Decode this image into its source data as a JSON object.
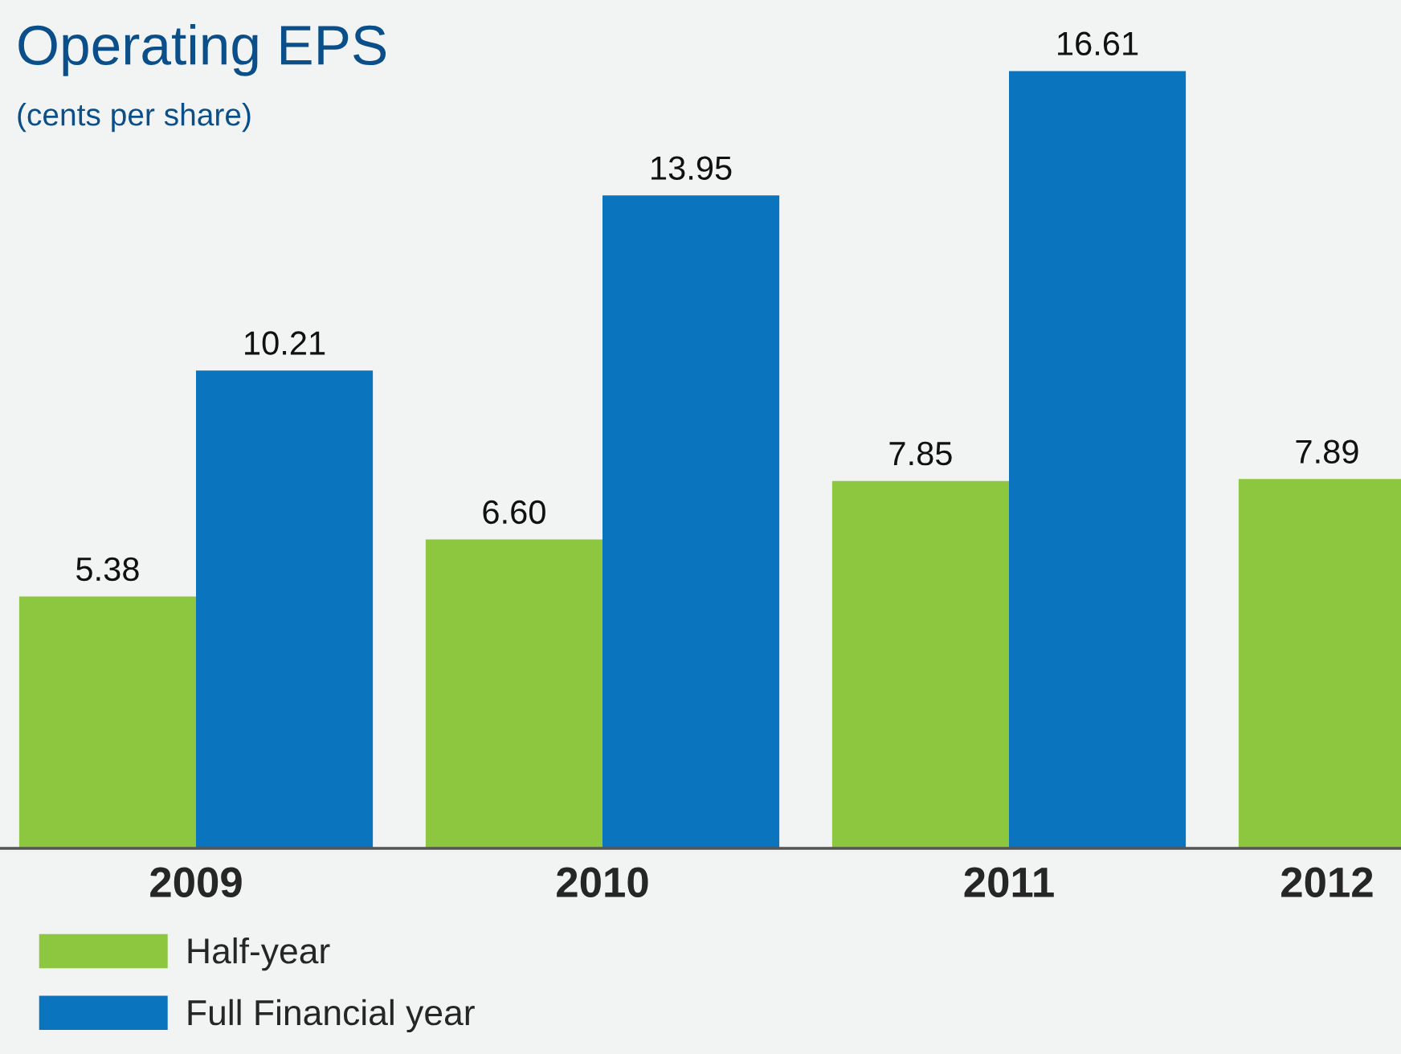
{
  "chart_data": {
    "type": "bar",
    "title": "Operating EPS",
    "subtitle": "(cents per share)",
    "categories": [
      "2009",
      "2010",
      "2011",
      "2012"
    ],
    "series": [
      {
        "name": "Half-year",
        "color": "#8dc63f",
        "values": [
          5.38,
          6.6,
          7.85,
          7.89
        ],
        "value_labels": [
          "5.38",
          "6.60",
          "7.85",
          "7.89"
        ]
      },
      {
        "name": "Full Financial year",
        "color": "#0a74bf",
        "values": [
          10.21,
          13.95,
          16.61,
          null
        ],
        "value_labels": [
          "10.21",
          "13.95",
          "16.61",
          null
        ]
      }
    ],
    "legend": "bottom left",
    "grid": false
  }
}
